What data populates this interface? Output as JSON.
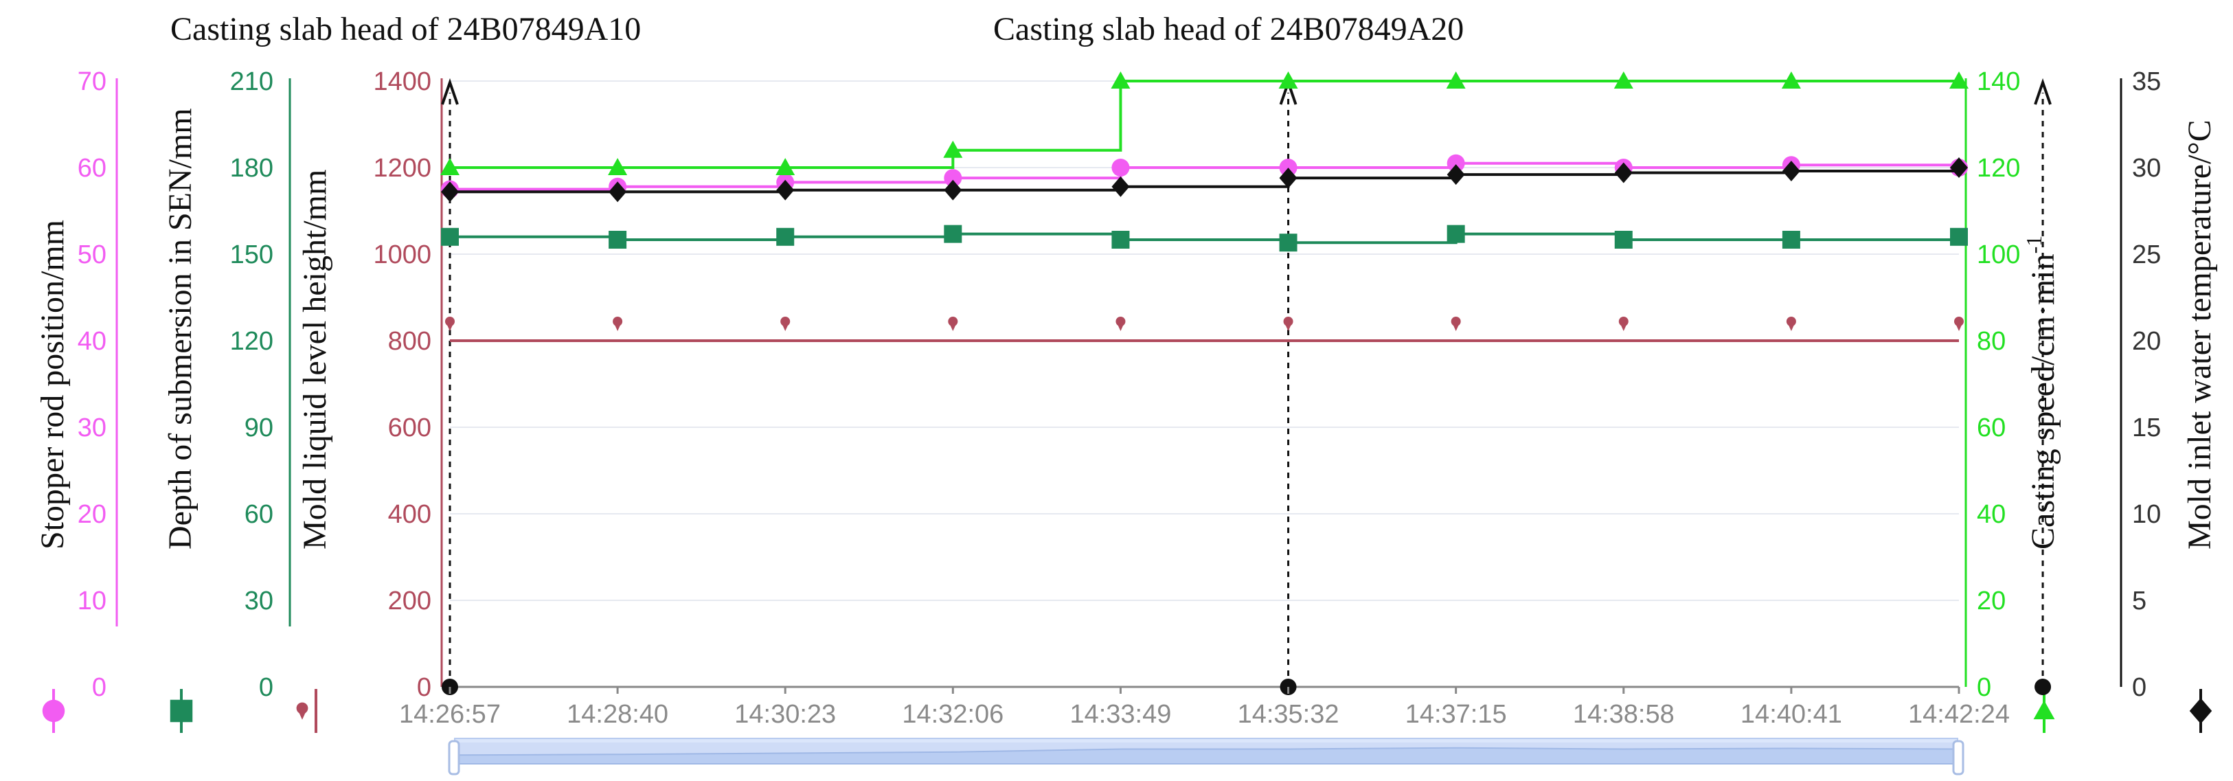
{
  "chart_data": {
    "type": "line",
    "annotations": [
      "Casting slab head of 24B07849A10",
      "Casting slab head of 24B07849A20"
    ],
    "x": [
      "14:26:57",
      "14:28:40",
      "14:30:23",
      "14:32:06",
      "14:33:49",
      "14:35:32",
      "14:37:15",
      "14:38:58",
      "14:40:41",
      "14:42:24"
    ],
    "event_x_index": [
      0,
      5,
      9.5
    ],
    "axes": [
      {
        "id": "stopper",
        "label": "Stopper rod position/mm",
        "ylim": [
          0,
          70
        ],
        "ticks": [
          0,
          10,
          20,
          30,
          40,
          50,
          60,
          70
        ],
        "color": "#f25cf2"
      },
      {
        "id": "sen",
        "label": "Depth of submersion in SEN/mm",
        "ylim": [
          0,
          210
        ],
        "ticks": [
          0,
          30,
          60,
          90,
          120,
          150,
          180,
          210
        ],
        "color": "#1e8a5a"
      },
      {
        "id": "level",
        "label": "Mold liquid level height/mm",
        "ylim": [
          0,
          1400
        ],
        "ticks": [
          0,
          200,
          400,
          600,
          800,
          1000,
          1200,
          1400
        ],
        "color": "#b04a5c"
      },
      {
        "id": "speed",
        "label": "Casting speed/cm·min",
        "label_sup": "-1",
        "ylim": [
          0,
          140
        ],
        "ticks": [
          0,
          20,
          40,
          60,
          80,
          100,
          120,
          140
        ],
        "color": "#22e022"
      },
      {
        "id": "temp",
        "label": "Mold inlet water temperature/°C",
        "ylim": [
          0,
          35
        ],
        "ticks": [
          0,
          5,
          10,
          15,
          20,
          25,
          30,
          35
        ],
        "color": "#111111"
      }
    ],
    "series": [
      {
        "name": "Stopper rod position/mm",
        "axis": "stopper",
        "marker": "circle",
        "color": "#f25cf2",
        "values": [
          57.5,
          57.8,
          58.3,
          58.8,
          60.0,
          60.0,
          60.5,
          60.0,
          60.3,
          60.0
        ]
      },
      {
        "name": "Depth of submersion in SEN/mm",
        "axis": "sen",
        "marker": "square",
        "color": "#1e8a5a",
        "values": [
          156,
          155,
          156,
          157,
          155,
          154,
          157,
          155,
          155,
          156
        ]
      },
      {
        "name": "Mold liquid level height/mm",
        "axis": "level",
        "marker": "pin",
        "color": "#b04a5c",
        "values": [
          800,
          800,
          800,
          800,
          800,
          800,
          800,
          800,
          800,
          800
        ]
      },
      {
        "name": "Casting speed/cm·min-1",
        "axis": "speed",
        "marker": "triangle",
        "color": "#22e022",
        "values": [
          120,
          120,
          120,
          124,
          140,
          140,
          140,
          140,
          140,
          140
        ]
      },
      {
        "name": "Mold inlet water temperature/°C",
        "axis": "temp",
        "marker": "diamond",
        "color": "#111111",
        "values": [
          28.6,
          28.6,
          28.7,
          28.7,
          28.9,
          29.4,
          29.6,
          29.7,
          29.8,
          30.0
        ]
      }
    ],
    "grid": true,
    "legend_placement": "along axes",
    "data_zoom": true
  }
}
